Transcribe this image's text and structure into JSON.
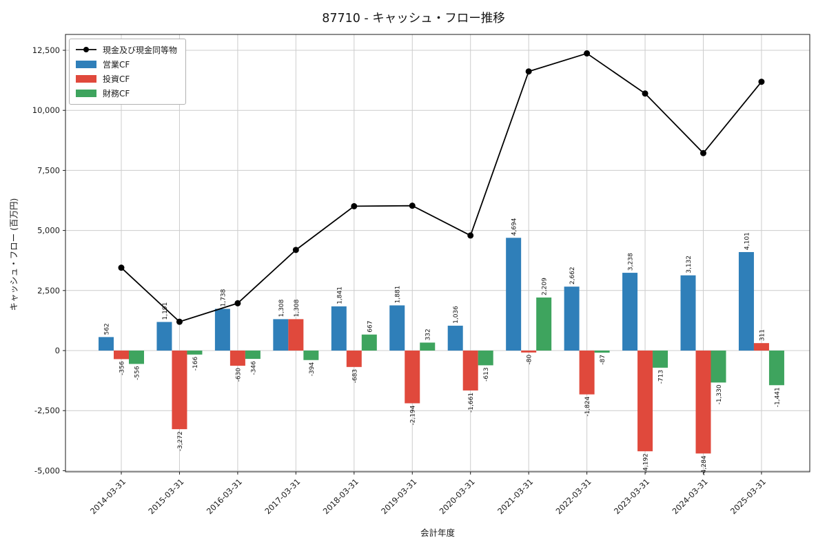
{
  "chart_data": {
    "type": "bar+line",
    "title": "87710 - キャッシュ・フロー推移",
    "xlabel": "会計年度",
    "ylabel": "キャッシュ・フロー (百万円)",
    "categories": [
      "2014-03-31",
      "2015-03-31",
      "2016-03-31",
      "2017-03-31",
      "2018-03-31",
      "2019-03-31",
      "2020-03-31",
      "2021-03-31",
      "2022-03-31",
      "2023-03-31",
      "2024-03-31",
      "2025-03-31"
    ],
    "series": [
      {
        "name": "営業CF",
        "type": "bar",
        "color": "#2f7fb9",
        "values": [
          562,
          1191,
          1738,
          1308,
          1841,
          1881,
          1036,
          4694,
          2662,
          3238,
          3132,
          4101
        ]
      },
      {
        "name": "投資CF",
        "type": "bar",
        "color": "#e0493c",
        "values": [
          -356,
          -3272,
          -630,
          1308,
          -683,
          -2194,
          -1661,
          -80,
          -1824,
          -4192,
          -4284,
          311
        ]
      },
      {
        "name": "財務CF",
        "type": "bar",
        "color": "#3ea45e",
        "values": [
          -556,
          -166,
          -346,
          -394,
          667,
          332,
          -613,
          2209,
          -87,
          -713,
          -1330,
          -1441
        ]
      },
      {
        "name": "現金及び現金同等物",
        "type": "line",
        "color": "#000000",
        "values": [
          3450,
          1200,
          1970,
          4190,
          6010,
          6030,
          4790,
          11620,
          12370,
          10700,
          8220,
          11190
        ]
      }
    ],
    "yticks": [
      -5000,
      -2500,
      0,
      2500,
      5000,
      7500,
      10000,
      12500
    ],
    "ylim": [
      -5046,
      13160
    ],
    "grid": true,
    "legend_position": "upper left",
    "bar_labels": true,
    "grid_color": "#cccccc",
    "axis_color": "#1a1a1a"
  }
}
